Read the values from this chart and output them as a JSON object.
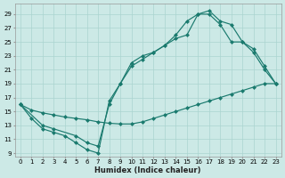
{
  "xlabel": "Humidex (Indice chaleur)",
  "background_color": "#cce9e6",
  "grid_color": "#aad4d0",
  "line_color": "#1a7a6e",
  "xlim": [
    -0.5,
    23.5
  ],
  "ylim": [
    8.5,
    30.5
  ],
  "xticks": [
    0,
    1,
    2,
    3,
    4,
    5,
    6,
    7,
    8,
    9,
    10,
    11,
    12,
    13,
    14,
    15,
    16,
    17,
    18,
    19,
    20,
    21,
    22,
    23
  ],
  "yticks": [
    9,
    11,
    13,
    15,
    17,
    19,
    21,
    23,
    25,
    27,
    29
  ],
  "line1_x": [
    0,
    1,
    2,
    3,
    4,
    5,
    6,
    7,
    8,
    9,
    10,
    11,
    12,
    13,
    14,
    15,
    16,
    17,
    18,
    19,
    20,
    21,
    22,
    23
  ],
  "line1_y": [
    16.0,
    15.2,
    14.8,
    14.5,
    14.2,
    14.0,
    13.8,
    13.5,
    13.3,
    13.2,
    13.2,
    13.5,
    14.0,
    14.5,
    15.0,
    15.5,
    16.0,
    16.5,
    17.0,
    17.5,
    18.0,
    18.5,
    19.0,
    19.0
  ],
  "line2_x": [
    0,
    1,
    2,
    3,
    4,
    5,
    6,
    7,
    8,
    9,
    10,
    11,
    12,
    13,
    14,
    15,
    16,
    17,
    18,
    19,
    20,
    21,
    22,
    23
  ],
  "line2_y": [
    16.0,
    14.0,
    12.5,
    12.0,
    11.5,
    10.5,
    9.5,
    9.0,
    16.5,
    19.0,
    21.5,
    22.5,
    23.5,
    24.5,
    26.0,
    28.0,
    29.0,
    29.5,
    28.0,
    27.5,
    25.0,
    23.5,
    21.0,
    19.0
  ],
  "line3_x": [
    0,
    2,
    3,
    5,
    6,
    7,
    8,
    9,
    10,
    11,
    12,
    13,
    14,
    15,
    16,
    17,
    18,
    19,
    20,
    21,
    22,
    23
  ],
  "line3_y": [
    16.0,
    13.0,
    12.5,
    11.5,
    10.5,
    10.0,
    16.0,
    19.0,
    22.0,
    23.0,
    23.5,
    24.5,
    25.5,
    26.0,
    29.0,
    29.0,
    27.5,
    25.0,
    25.0,
    24.0,
    21.5,
    19.0
  ]
}
